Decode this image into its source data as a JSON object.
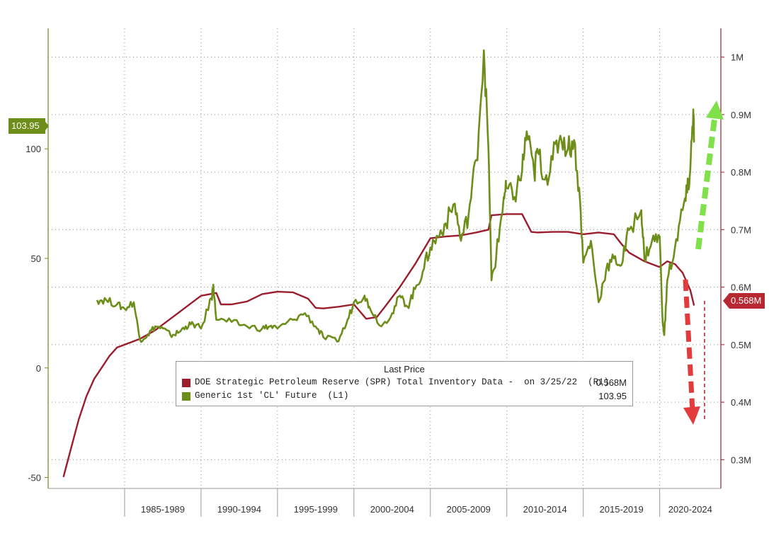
{
  "chart_data": {
    "type": "line",
    "x_categories": [
      "1985-1989",
      "1990-1994",
      "1995-1999",
      "2000-2004",
      "2005-2009",
      "2010-2014",
      "2015-2019",
      "2020-2024"
    ],
    "left_axis": {
      "ticks": [
        -50,
        0,
        50,
        100
      ],
      "tick_labels": [
        "-50",
        "0",
        "50",
        "100"
      ],
      "range": [
        -55,
        155
      ]
    },
    "right_axis": {
      "ticks": [
        0.3,
        0.4,
        0.5,
        0.6,
        0.7,
        0.8,
        0.9,
        1.0
      ],
      "tick_labels": [
        "0.3M",
        "0.4M",
        "0.5M",
        "0.6M",
        "0.7M",
        "0.8M",
        "0.9M",
        "1M"
      ],
      "range": [
        0.25,
        1.05
      ]
    },
    "legend": {
      "title": "Last Price",
      "placement": "bottom-center",
      "entries": [
        {
          "label": "DOE Strategic Petroleum Reserve (SPR) Total Inventory Data -  on 3/25/22  (R1)",
          "value": "0.568M",
          "color": "#9b1d2e"
        },
        {
          "label": "Generic 1st 'CL' Future  (L1)",
          "value": "103.95",
          "color": "#6e8e1a"
        }
      ]
    },
    "last_value_tags": {
      "left": "103.95",
      "right": "0.568M"
    },
    "grid": true,
    "series": [
      {
        "name": "DOE Strategic Petroleum Reserve (SPR) Total Inventory Data -  on 3/25/22  (R1)",
        "axis": "right",
        "color": "#9b1d2e",
        "points": [
          [
            1981.0,
            0.27
          ],
          [
            1981.5,
            0.32
          ],
          [
            1982.0,
            0.37
          ],
          [
            1982.5,
            0.41
          ],
          [
            1983.0,
            0.44
          ],
          [
            1983.5,
            0.46
          ],
          [
            1984.0,
            0.48
          ],
          [
            1984.5,
            0.495
          ],
          [
            1985.0,
            0.5
          ],
          [
            1986.0,
            0.51
          ],
          [
            1987.0,
            0.525
          ],
          [
            1988.0,
            0.545
          ],
          [
            1989.0,
            0.565
          ],
          [
            1990.0,
            0.585
          ],
          [
            1991.0,
            0.59
          ],
          [
            1991.3,
            0.57
          ],
          [
            1992.0,
            0.57
          ],
          [
            1993.0,
            0.575
          ],
          [
            1994.0,
            0.588
          ],
          [
            1995.0,
            0.592
          ],
          [
            1996.0,
            0.591
          ],
          [
            1997.0,
            0.58
          ],
          [
            1997.5,
            0.564
          ],
          [
            1998.0,
            0.563
          ],
          [
            1999.0,
            0.566
          ],
          [
            2000.0,
            0.57
          ],
          [
            2000.8,
            0.545
          ],
          [
            2001.5,
            0.548
          ],
          [
            2002.0,
            0.565
          ],
          [
            2003.0,
            0.6
          ],
          [
            2004.0,
            0.64
          ],
          [
            2005.0,
            0.685
          ],
          [
            2006.0,
            0.688
          ],
          [
            2007.0,
            0.69
          ],
          [
            2008.0,
            0.695
          ],
          [
            2008.8,
            0.7
          ],
          [
            2009.0,
            0.725
          ],
          [
            2010.0,
            0.727
          ],
          [
            2011.0,
            0.727
          ],
          [
            2011.6,
            0.696
          ],
          [
            2012.0,
            0.695
          ],
          [
            2013.0,
            0.696
          ],
          [
            2014.0,
            0.696
          ],
          [
            2015.0,
            0.692
          ],
          [
            2016.0,
            0.695
          ],
          [
            2017.0,
            0.692
          ],
          [
            2017.5,
            0.675
          ],
          [
            2018.0,
            0.66
          ],
          [
            2019.0,
            0.645
          ],
          [
            2020.0,
            0.635
          ],
          [
            2020.5,
            0.645
          ],
          [
            2021.0,
            0.64
          ],
          [
            2021.5,
            0.625
          ],
          [
            2022.0,
            0.595
          ],
          [
            2022.25,
            0.568
          ]
        ]
      },
      {
        "name": "Generic 1st 'CL' Future  (L1)",
        "axis": "left",
        "color": "#6e8e1a",
        "points": [
          [
            1983.2,
            31
          ],
          [
            1983.8,
            31
          ],
          [
            1984.5,
            29
          ],
          [
            1985.0,
            27
          ],
          [
            1985.6,
            30
          ],
          [
            1986.0,
            13
          ],
          [
            1986.5,
            15
          ],
          [
            1987.0,
            19
          ],
          [
            1987.5,
            18
          ],
          [
            1988.0,
            15
          ],
          [
            1988.5,
            16
          ],
          [
            1989.0,
            19
          ],
          [
            1989.5,
            20
          ],
          [
            1990.0,
            18
          ],
          [
            1990.7,
            32
          ],
          [
            1990.8,
            38
          ],
          [
            1991.0,
            22
          ],
          [
            1992.0,
            21
          ],
          [
            1993.0,
            19
          ],
          [
            1994.0,
            18
          ],
          [
            1994.5,
            19
          ],
          [
            1995.0,
            18
          ],
          [
            1996.0,
            22
          ],
          [
            1996.8,
            25
          ],
          [
            1997.5,
            19
          ],
          [
            1998.0,
            14
          ],
          [
            1998.9,
            12
          ],
          [
            1999.5,
            20
          ],
          [
            2000.0,
            30
          ],
          [
            2000.7,
            33
          ],
          [
            2001.0,
            28
          ],
          [
            2001.8,
            19
          ],
          [
            2002.5,
            25
          ],
          [
            2003.0,
            33
          ],
          [
            2003.5,
            28
          ],
          [
            2004.0,
            36
          ],
          [
            2004.5,
            44
          ],
          [
            2005.0,
            55
          ],
          [
            2005.5,
            60
          ],
          [
            2006.0,
            66
          ],
          [
            2006.6,
            75
          ],
          [
            2007.0,
            58
          ],
          [
            2007.5,
            70
          ],
          [
            2008.0,
            95
          ],
          [
            2008.5,
            145
          ],
          [
            2008.8,
            100
          ],
          [
            2009.0,
            40
          ],
          [
            2009.3,
            50
          ],
          [
            2009.8,
            78
          ],
          [
            2010.0,
            82
          ],
          [
            2010.5,
            78
          ],
          [
            2011.0,
            90
          ],
          [
            2011.3,
            108
          ],
          [
            2011.8,
            88
          ],
          [
            2012.0,
            100
          ],
          [
            2012.5,
            86
          ],
          [
            2013.0,
            95
          ],
          [
            2013.5,
            106
          ],
          [
            2014.0,
            100
          ],
          [
            2014.4,
            104
          ],
          [
            2014.8,
            75
          ],
          [
            2015.0,
            48
          ],
          [
            2015.5,
            58
          ],
          [
            2016.0,
            30
          ],
          [
            2016.5,
            45
          ],
          [
            2017.0,
            50
          ],
          [
            2017.5,
            47
          ],
          [
            2018.0,
            63
          ],
          [
            2018.8,
            72
          ],
          [
            2019.0,
            50
          ],
          [
            2019.5,
            58
          ],
          [
            2020.0,
            60
          ],
          [
            2020.2,
            20
          ],
          [
            2020.3,
            15
          ],
          [
            2020.5,
            40
          ],
          [
            2021.0,
            55
          ],
          [
            2021.5,
            72
          ],
          [
            2021.8,
            80
          ],
          [
            2022.0,
            90
          ],
          [
            2022.2,
            118
          ],
          [
            2022.25,
            103.95
          ]
        ]
      }
    ]
  }
}
